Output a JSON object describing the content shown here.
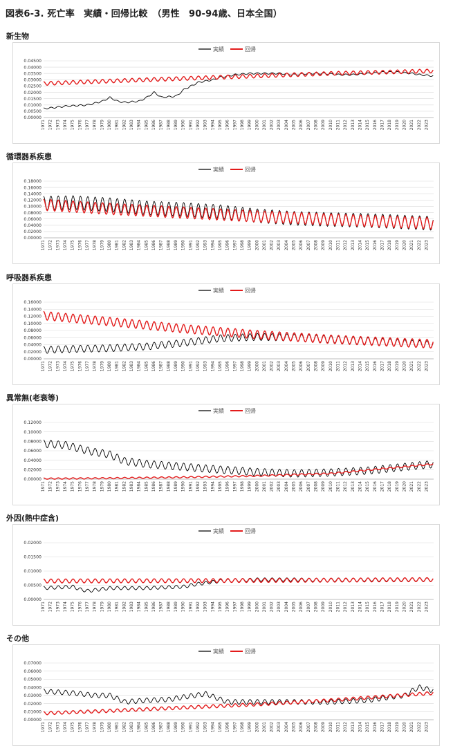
{
  "page": {
    "title": "図表6-3. 死亡率　実績・回帰比較　（男性　90-94歳、日本全国）"
  },
  "colors": {
    "actual": "#000000",
    "regression": "#e31b1b",
    "grid": "#d9d9d9",
    "axis": "#7f7f7f"
  },
  "x_tick_labels": [
    "1971",
    "1972",
    "1973",
    "1974",
    "1975",
    "1976",
    "1977",
    "1978",
    "1979",
    "1980",
    "1981",
    "1982",
    "1983",
    "1984",
    "1985",
    "1986",
    "1987",
    "1988",
    "1989",
    "1990",
    "1991",
    "1992",
    "1993",
    "1994",
    "1995",
    "1996",
    "1997",
    "1998",
    "1999",
    "2000",
    "2001",
    "2002",
    "2003",
    "2004",
    "2005",
    "2006",
    "2007",
    "2008",
    "2009",
    "2010",
    "2011",
    "2012",
    "2013",
    "2014",
    "2015",
    "2016",
    "2017",
    "2018",
    "2019",
    "2020",
    "2021",
    "2022",
    "2023"
  ],
  "chart_data": [
    {
      "type": "line",
      "title": "新生物",
      "legend": {
        "position": "top-center",
        "entries": [
          "実績",
          "回帰"
        ]
      },
      "ylim": [
        0,
        0.045
      ],
      "ystep": 0.005,
      "y_decimals": 5,
      "x_range": [
        1971,
        2023.9
      ],
      "seasonal_amplitude": {
        "actual": 0.0006,
        "regression": 0.0015
      },
      "series": [
        {
          "name": "実績",
          "key": "actual",
          "x": [
            1971,
            1974,
            1977,
            1979,
            1980,
            1981,
            1982,
            1984,
            1985,
            1986,
            1987,
            1989,
            1990,
            1991,
            1992,
            1994,
            1995,
            1997,
            1999,
            2001,
            2003,
            2005,
            2007,
            2009,
            2011,
            2013,
            2015,
            2017,
            2019,
            2021,
            2022,
            2023.9
          ],
          "y": [
            0.007,
            0.009,
            0.01,
            0.013,
            0.016,
            0.013,
            0.012,
            0.013,
            0.016,
            0.02,
            0.016,
            0.017,
            0.022,
            0.025,
            0.028,
            0.03,
            0.032,
            0.034,
            0.035,
            0.035,
            0.035,
            0.034,
            0.035,
            0.035,
            0.034,
            0.034,
            0.035,
            0.036,
            0.036,
            0.035,
            0.034,
            0.033
          ]
        },
        {
          "name": "回帰",
          "key": "regression",
          "x": [
            1971,
            1980,
            1990,
            2000,
            2010,
            2023.9
          ],
          "y": [
            0.027,
            0.029,
            0.031,
            0.033,
            0.035,
            0.037
          ]
        }
      ]
    },
    {
      "type": "line",
      "title": "循環器系疾患",
      "legend": {
        "position": "top-center",
        "entries": [
          "実績",
          "回帰"
        ]
      },
      "ylim": [
        0,
        0.18
      ],
      "ystep": 0.02,
      "y_decimals": 5,
      "x_range": [
        1971,
        2023.9
      ],
      "seasonal_amplitude": {
        "actual": 0.022,
        "regression": 0.018
      },
      "series": [
        {
          "name": "実績",
          "key": "actual",
          "x": [
            1971,
            1975,
            1980,
            1985,
            1990,
            1995,
            2000,
            2005,
            2010,
            2015,
            2020,
            2023.9
          ],
          "y": [
            0.11,
            0.112,
            0.105,
            0.095,
            0.09,
            0.083,
            0.07,
            0.062,
            0.058,
            0.055,
            0.05,
            0.046
          ]
        },
        {
          "name": "回帰",
          "key": "regression",
          "x": [
            1971,
            1980,
            1990,
            2000,
            2010,
            2023.9
          ],
          "y": [
            0.105,
            0.092,
            0.08,
            0.068,
            0.058,
            0.046
          ]
        }
      ]
    },
    {
      "type": "line",
      "title": "呼吸器系疾患",
      "legend": {
        "position": "top-center",
        "entries": [
          "実績",
          "回帰"
        ]
      },
      "ylim": [
        0,
        0.16
      ],
      "ystep": 0.02,
      "y_decimals": 5,
      "x_range": [
        1971,
        2023.9
      ],
      "seasonal_amplitude": {
        "actual": 0.01,
        "regression": 0.012
      },
      "series": [
        {
          "name": "実績",
          "key": "actual",
          "x": [
            1971,
            1975,
            1980,
            1985,
            1990,
            1995,
            2000,
            2005,
            2010,
            2015,
            2020,
            2023.9
          ],
          "y": [
            0.025,
            0.028,
            0.03,
            0.035,
            0.045,
            0.058,
            0.062,
            0.06,
            0.055,
            0.05,
            0.044,
            0.04
          ]
        },
        {
          "name": "回帰",
          "key": "regression",
          "x": [
            1971,
            1980,
            1990,
            2000,
            2010,
            2023.9
          ],
          "y": [
            0.122,
            0.105,
            0.085,
            0.068,
            0.055,
            0.042
          ]
        }
      ]
    },
    {
      "type": "line",
      "title": "異常無(老衰等)",
      "legend": {
        "position": "top-center",
        "entries": [
          "実績",
          "回帰"
        ]
      },
      "ylim": [
        0,
        0.12
      ],
      "ystep": 0.02,
      "y_decimals": 5,
      "x_range": [
        1971,
        2023.9
      ],
      "seasonal_amplitude": {
        "actual": 0.008,
        "regression": 0.0015
      },
      "series": [
        {
          "name": "実績",
          "key": "actual",
          "x": [
            1971,
            1974,
            1977,
            1980,
            1982,
            1985,
            1990,
            1995,
            2000,
            2005,
            2010,
            2015,
            2020,
            2023.9
          ],
          "y": [
            0.075,
            0.072,
            0.06,
            0.052,
            0.038,
            0.032,
            0.026,
            0.02,
            0.015,
            0.012,
            0.014,
            0.018,
            0.026,
            0.032
          ]
        },
        {
          "name": "回帰",
          "key": "regression",
          "x": [
            1971,
            1980,
            1990,
            2000,
            2010,
            2023.9
          ],
          "y": [
            0.001,
            0.002,
            0.004,
            0.007,
            0.012,
            0.032
          ]
        }
      ]
    },
    {
      "type": "line",
      "title": "外因(熱中症含)",
      "legend": {
        "position": "top-center",
        "entries": [
          "実績",
          "回帰"
        ]
      },
      "ylim": [
        0,
        0.02
      ],
      "ystep": 0.005,
      "y_decimals": 5,
      "x_range": [
        1971,
        2023.9
      ],
      "seasonal_amplitude": {
        "actual": 0.0006,
        "regression": 0.0007
      },
      "series": [
        {
          "name": "実績",
          "key": "actual",
          "x": [
            1971,
            1975,
            1976,
            1977,
            1980,
            1985,
            1990,
            1992,
            1995,
            2000,
            2005,
            2010,
            2011,
            2012,
            2015,
            2020,
            2023.9
          ],
          "y": [
            0.004,
            0.0045,
            0.0035,
            0.003,
            0.004,
            0.004,
            0.0045,
            0.0055,
            0.0065,
            0.007,
            0.007,
            0.0068,
            0.007,
            0.0068,
            0.007,
            0.007,
            0.007
          ]
        },
        {
          "name": "回帰",
          "key": "regression",
          "x": [
            1971,
            1990,
            2010,
            2023.9
          ],
          "y": [
            0.0065,
            0.0066,
            0.0068,
            0.007
          ]
        }
      ]
    },
    {
      "type": "line",
      "title": "その他",
      "legend": {
        "position": "top-center",
        "entries": [
          "実績",
          "回帰"
        ]
      },
      "ylim": [
        0,
        0.07
      ],
      "ystep": 0.01,
      "y_decimals": 5,
      "x_range": [
        1971,
        2023.9
      ],
      "seasonal_amplitude": {
        "actual": 0.003,
        "regression": 0.002
      },
      "series": [
        {
          "name": "実績",
          "key": "actual",
          "x": [
            1971,
            1975,
            1978,
            1980,
            1982,
            1985,
            1988,
            1990,
            1993,
            1995,
            1996,
            2000,
            2005,
            2010,
            2015,
            2018,
            2020,
            2021,
            2022,
            2023.9
          ],
          "y": [
            0.035,
            0.033,
            0.03,
            0.03,
            0.022,
            0.024,
            0.025,
            0.028,
            0.032,
            0.025,
            0.022,
            0.022,
            0.022,
            0.022,
            0.024,
            0.028,
            0.03,
            0.036,
            0.04,
            0.036
          ]
        },
        {
          "name": "回帰",
          "key": "regression",
          "x": [
            1971,
            1980,
            1990,
            2000,
            2010,
            2023.9
          ],
          "y": [
            0.008,
            0.011,
            0.015,
            0.019,
            0.024,
            0.033
          ]
        }
      ]
    }
  ]
}
